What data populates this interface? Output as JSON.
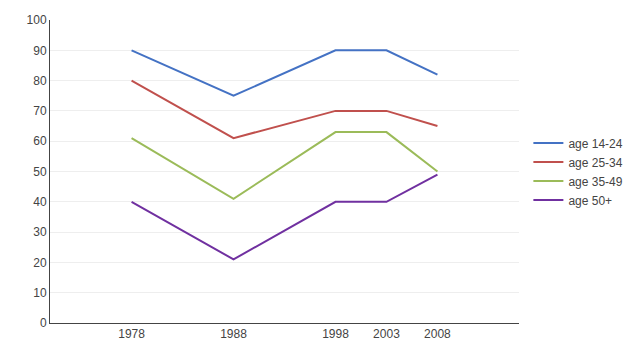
{
  "chart_data": {
    "type": "line",
    "x": [
      1978,
      1988,
      1998,
      2003,
      2008
    ],
    "series": [
      {
        "name": "age 14-24",
        "color": "#4472C4",
        "values": [
          90,
          75,
          90,
          90,
          82
        ]
      },
      {
        "name": "age 25-34",
        "color": "#C0504D",
        "values": [
          80,
          61,
          70,
          70,
          65
        ]
      },
      {
        "name": "age 35-49",
        "color": "#9BBB59",
        "values": [
          61,
          41,
          63,
          63,
          50
        ]
      },
      {
        "name": "age 50+",
        "color": "#7030A0",
        "values": [
          40,
          21,
          40,
          40,
          49
        ]
      }
    ],
    "xlim": [
      1970,
      2016
    ],
    "xticks": [
      1978,
      1988,
      1998,
      2003,
      2008
    ],
    "ylim": [
      0,
      100
    ],
    "yticks": [
      0,
      10,
      20,
      30,
      40,
      50,
      60,
      70,
      80,
      90,
      100
    ],
    "grid": "y",
    "legend": "right"
  }
}
